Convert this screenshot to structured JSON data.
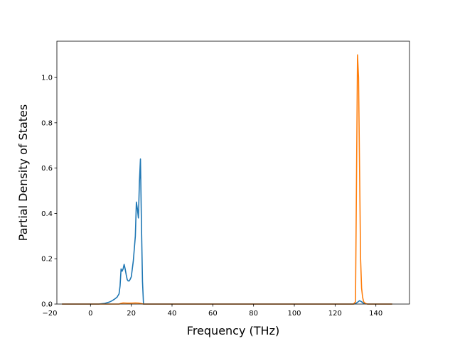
{
  "chart_data": {
    "type": "line",
    "title": "",
    "xlabel": "Frequency (THz)",
    "ylabel": "Partial Density of States",
    "xlim": [
      -16.5,
      156.5
    ],
    "ylim": [
      0.0,
      1.16
    ],
    "xticks": [
      -20,
      0,
      20,
      40,
      60,
      80,
      100,
      120,
      140
    ],
    "xtick_labels": [
      "−20",
      "0",
      "20",
      "40",
      "60",
      "80",
      "100",
      "120",
      "140"
    ],
    "yticks": [
      0.0,
      0.2,
      0.4,
      0.6,
      0.8,
      1.0
    ],
    "ytick_labels": [
      "0.0",
      "0.2",
      "0.4",
      "0.6",
      "0.8",
      "1.0"
    ],
    "grid": false,
    "legend": "none",
    "series": [
      {
        "color": "#1f77b4",
        "x": [
          -14,
          0,
          4,
          7,
          9,
          10,
          11,
          12,
          13,
          14,
          14.5,
          15,
          15.5,
          16,
          16.5,
          17,
          17.5,
          18,
          18.5,
          19,
          19.5,
          20,
          21,
          22,
          22.5,
          23,
          23.5,
          24,
          24.5,
          25,
          25.5,
          26,
          30,
          60,
          100,
          129,
          130,
          131,
          132,
          133,
          134,
          136,
          148
        ],
        "y": [
          0,
          0,
          0,
          0.003,
          0.008,
          0.012,
          0.017,
          0.023,
          0.03,
          0.045,
          0.08,
          0.155,
          0.145,
          0.155,
          0.175,
          0.155,
          0.13,
          0.108,
          0.102,
          0.102,
          0.11,
          0.12,
          0.19,
          0.3,
          0.45,
          0.42,
          0.38,
          0.54,
          0.64,
          0.35,
          0.1,
          0,
          0,
          0,
          0,
          0,
          0.002,
          0.008,
          0.015,
          0.01,
          0.003,
          0,
          0
        ]
      },
      {
        "color": "#ff7f0e",
        "x": [
          -14,
          14,
          15,
          16,
          18,
          20,
          22,
          24,
          26,
          60,
          100,
          129,
          130,
          130.5,
          131,
          131.5,
          132,
          132.5,
          133,
          133.5,
          134,
          135,
          136,
          148
        ],
        "y": [
          0,
          0,
          0.003,
          0.005,
          0.004,
          0.004,
          0.005,
          0.004,
          0,
          0,
          0,
          0,
          0.01,
          0.55,
          1.1,
          1.0,
          0.6,
          0.2,
          0.07,
          0.03,
          0.01,
          0.002,
          0,
          0
        ]
      }
    ]
  }
}
